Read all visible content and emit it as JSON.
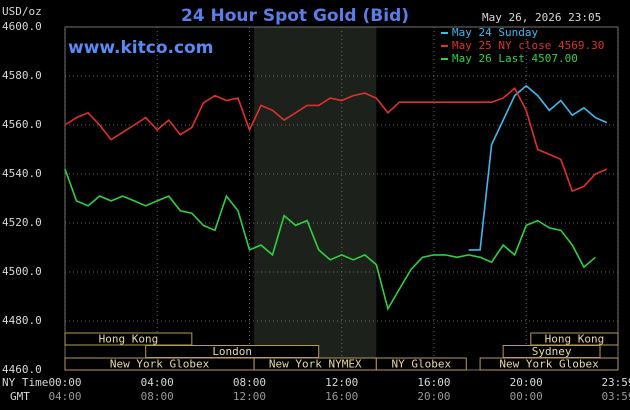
{
  "chart_data": {
    "type": "line",
    "title": "24 Hour Spot Gold (Bid)",
    "y_label": "USD/oz",
    "source": "www.kitco.com",
    "timestamp": "May 26, 2026 23:05",
    "x_row_labels": [
      "NY Time",
      "GMT"
    ],
    "x": [
      0,
      0.5,
      1,
      1.5,
      2,
      2.5,
      3,
      3.5,
      4,
      4.5,
      5,
      5.5,
      6,
      6.5,
      7,
      7.5,
      8,
      8.5,
      9,
      9.5,
      10,
      10.5,
      11,
      11.5,
      12,
      12.5,
      13,
      13.5,
      14,
      14.5,
      15,
      15.5,
      16,
      16.5,
      17,
      17.5,
      18,
      18.5,
      19,
      19.5,
      20,
      20.5,
      21,
      21.5,
      22,
      22.5,
      23,
      23.5
    ],
    "series": [
      {
        "name": "May 24 Sunday",
        "color": "#3fb8f0",
        "values": [
          null,
          null,
          null,
          null,
          null,
          null,
          null,
          null,
          null,
          null,
          null,
          null,
          null,
          null,
          null,
          null,
          null,
          null,
          null,
          null,
          null,
          null,
          null,
          null,
          null,
          null,
          null,
          null,
          null,
          null,
          null,
          null,
          null,
          null,
          null,
          4509,
          4509,
          4552,
          4562,
          4572,
          4576,
          4572,
          4566,
          4570,
          4564,
          4567,
          4563,
          4561
        ]
      },
      {
        "name": "May 25 NY close 4569.30",
        "color": "#e0302a",
        "values": [
          4560,
          4563,
          4565,
          4560,
          4554,
          4557,
          4560,
          4563,
          4558,
          4562,
          4556,
          4559,
          4569,
          4572,
          4570,
          4571,
          4558,
          4568,
          4566,
          4562,
          4565,
          4568,
          4568,
          4571,
          4570,
          4572,
          4573,
          4571,
          4565,
          4569.3,
          4569.3,
          4569.3,
          4569.3,
          4569.3,
          4569.3,
          4569.3,
          4569.3,
          4569.3,
          4571,
          4575,
          4566,
          4550,
          4548,
          4546,
          4533,
          4535,
          4540,
          4542
        ]
      },
      {
        "name": "May 26 Last 4507.00",
        "color": "#30d040",
        "values": [
          4542,
          4529,
          4527,
          4531,
          4529,
          4531,
          4529,
          4527,
          4529,
          4531,
          4525,
          4524,
          4519,
          4517,
          4531,
          4525,
          4509,
          4511,
          4507,
          4523,
          4519,
          4521,
          4509,
          4505,
          4507,
          4505,
          4507,
          4503,
          4485,
          4493,
          4501,
          4506,
          4507,
          4507,
          4506,
          4507,
          4506,
          4504,
          4511,
          4507,
          4519,
          4521,
          4518,
          4517,
          4511,
          4502,
          4506,
          null
        ]
      }
    ],
    "xlim": [
      0,
      23.98
    ],
    "ylim": [
      4460,
      4600
    ],
    "yticks": [
      {
        "value": 4460,
        "label": "4460.0"
      },
      {
        "value": 4480,
        "label": "4480.0"
      },
      {
        "value": 4500,
        "label": "4500.0"
      },
      {
        "value": 4520,
        "label": "4520.0"
      },
      {
        "value": 4540,
        "label": "4540.0"
      },
      {
        "value": 4560,
        "label": "4560.0"
      },
      {
        "value": 4580,
        "label": "4580.0"
      },
      {
        "value": 4600,
        "label": "4600.0"
      }
    ],
    "xticks": [
      {
        "value": 0,
        "label": "00:00"
      },
      {
        "value": 4,
        "label": "04:00"
      },
      {
        "value": 8,
        "label": "08:00"
      },
      {
        "value": 12,
        "label": "12:00"
      },
      {
        "value": 16,
        "label": "16:00"
      },
      {
        "value": 20,
        "label": "20:00"
      },
      {
        "value": 23.98,
        "label": "23:59"
      }
    ],
    "x2ticks": [
      {
        "value": 0,
        "label": "04:00"
      },
      {
        "value": 4,
        "label": "08:00"
      },
      {
        "value": 8,
        "label": "12:00"
      },
      {
        "value": 12,
        "label": "16:00"
      },
      {
        "value": 16,
        "label": "20:00"
      },
      {
        "value": 20,
        "label": "00:00"
      },
      {
        "value": 23.98,
        "label": "03:59"
      }
    ],
    "session_rows": [
      [
        {
          "label": "Hong Kong",
          "start": 0,
          "end": 5.5
        },
        {
          "label": "Hong Kong",
          "start": 20.2,
          "end": 23.98
        }
      ],
      [
        {
          "label": "London",
          "start": 3.5,
          "end": 11
        },
        {
          "label": "Sydney",
          "start": 19,
          "end": 23.2
        }
      ],
      [
        {
          "label": "New York Globex",
          "start": 0,
          "end": 8.2
        },
        {
          "label": "New York NYMEX",
          "start": 8.2,
          "end": 13.5
        },
        {
          "label": "NY Globex",
          "start": 13.5,
          "end": 17.4
        },
        {
          "label": "New York Globex",
          "start": 18,
          "end": 23.98
        }
      ]
    ],
    "shaded": {
      "start": 8.2,
      "end": 13.5
    },
    "grid": true
  }
}
